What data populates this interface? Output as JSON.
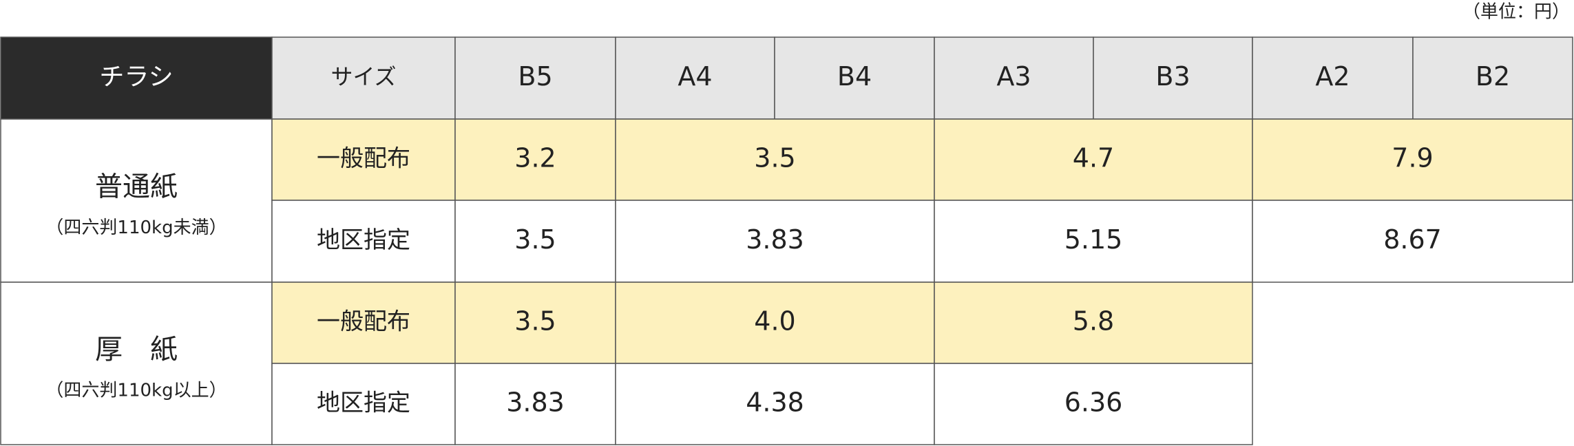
{
  "unit_note": "（単位：円）",
  "header": {
    "corner": "チラシ",
    "size_label": "サイズ",
    "sizes": [
      "B5",
      "A4",
      "B4",
      "A3",
      "B3",
      "A2",
      "B2"
    ]
  },
  "groups": [
    {
      "name": "普通紙",
      "note": "（四六判110kg未満）",
      "rows": [
        {
          "label": "一般配布",
          "values": [
            "3.2",
            "3.5",
            "4.7",
            "7.9"
          ]
        },
        {
          "label": "地区指定",
          "values": [
            "3.5",
            "3.83",
            "5.15",
            "8.67"
          ]
        }
      ]
    },
    {
      "name": "厚　紙",
      "note": "（四六判110kg以上）",
      "rows": [
        {
          "label": "一般配布",
          "values": [
            "3.5",
            "4.0",
            "5.8"
          ]
        },
        {
          "label": "地区指定",
          "values": [
            "3.83",
            "4.38",
            "6.36"
          ]
        }
      ]
    }
  ]
}
